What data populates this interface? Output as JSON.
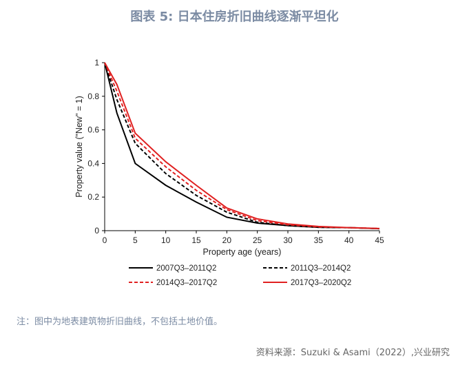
{
  "title": "图表 5:  日本住房折旧曲线逐渐平坦化",
  "note": "注：图中为地表建筑物折旧曲线，不包括土地价值。",
  "source": "资料来源：Suzuki & Asami（2022）,兴业研究",
  "chart_data": {
    "type": "line",
    "xlabel": "Property age (years)",
    "ylabel": "Property value (\"New\" = 1)",
    "xlim": [
      0,
      45
    ],
    "ylim": [
      0,
      1
    ],
    "xticks": [
      0,
      5,
      10,
      15,
      20,
      25,
      30,
      35,
      40,
      45
    ],
    "yticks": [
      0,
      0.2,
      0.4,
      0.6,
      0.8,
      1
    ],
    "ytick_labels": [
      "0",
      "0.2",
      "0.4",
      "0.6",
      "0.8",
      "1"
    ],
    "grid": false,
    "legend_position": "bottom",
    "x": [
      0,
      2,
      5,
      10,
      15,
      20,
      25,
      30,
      35,
      40,
      45
    ],
    "series": [
      {
        "name": "2007Q3–2011Q2",
        "color": "#000000",
        "dash": false,
        "values": [
          1,
          0.7,
          0.4,
          0.27,
          0.17,
          0.08,
          0.045,
          0.03,
          0.02,
          0.018,
          0.012
        ]
      },
      {
        "name": "2011Q3–2014Q2",
        "color": "#000000",
        "dash": true,
        "values": [
          1,
          0.78,
          0.52,
          0.34,
          0.21,
          0.11,
          0.05,
          0.03,
          0.02,
          0.018,
          0.012
        ]
      },
      {
        "name": "2014Q3–2017Q2",
        "color": "#e02020",
        "dash": true,
        "values": [
          1,
          0.83,
          0.55,
          0.38,
          0.24,
          0.125,
          0.06,
          0.035,
          0.022,
          0.018,
          0.013
        ]
      },
      {
        "name": "2017Q3–2020Q2",
        "color": "#e02020",
        "dash": false,
        "values": [
          1,
          0.87,
          0.58,
          0.41,
          0.27,
          0.135,
          0.07,
          0.04,
          0.025,
          0.018,
          0.013
        ]
      }
    ]
  }
}
